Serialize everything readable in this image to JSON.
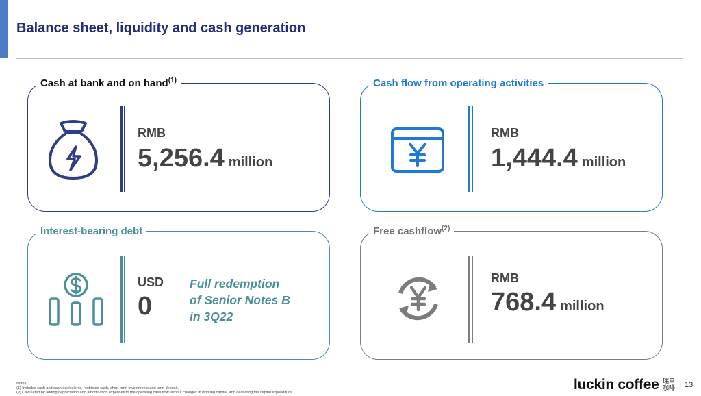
{
  "title": "Balance sheet, liquidity and cash generation",
  "colors": {
    "title_navy": "#1f2f7a",
    "card1_navy": "#2f3c86",
    "card2_blue": "#1f7ad6",
    "card3_teal": "#4b8f97",
    "card4_gray": "#7c7c7c"
  },
  "cards": [
    {
      "label": "Cash at bank and on hand",
      "sup": "(1)",
      "currency": "RMB",
      "amount": "5,256.4",
      "unit": "million",
      "icon": "money-bag-icon"
    },
    {
      "label": "Cash flow from operating activities",
      "sup": "",
      "currency": "RMB",
      "amount": "1,444.4",
      "unit": "million",
      "icon": "yen-window-icon"
    },
    {
      "label": "Interest-bearing debt",
      "sup": "",
      "currency": "USD",
      "amount": "0",
      "unit": "",
      "note": [
        "Full redemption",
        "of Senior Notes B",
        "in 3Q22"
      ],
      "icon": "dollar-coin-bars-icon"
    },
    {
      "label": "Free cashflow",
      "sup": "(2)",
      "currency": "RMB",
      "amount": "768.4",
      "unit": "million",
      "icon": "yen-cycle-icon"
    }
  ],
  "notes": {
    "heading": "Notes:",
    "items": [
      "(1)  Includes cash and cash equivalents, restricted cash, short-term investments and term deposit.",
      "(2)  Calculated by adding depreciation and amortization expenses to the operating cash flow without changes in working capital, and deducting the capital expenditure."
    ]
  },
  "brand": {
    "name": "luckin coffee",
    "cn": "瑞幸咖啡"
  },
  "page_number": "13"
}
